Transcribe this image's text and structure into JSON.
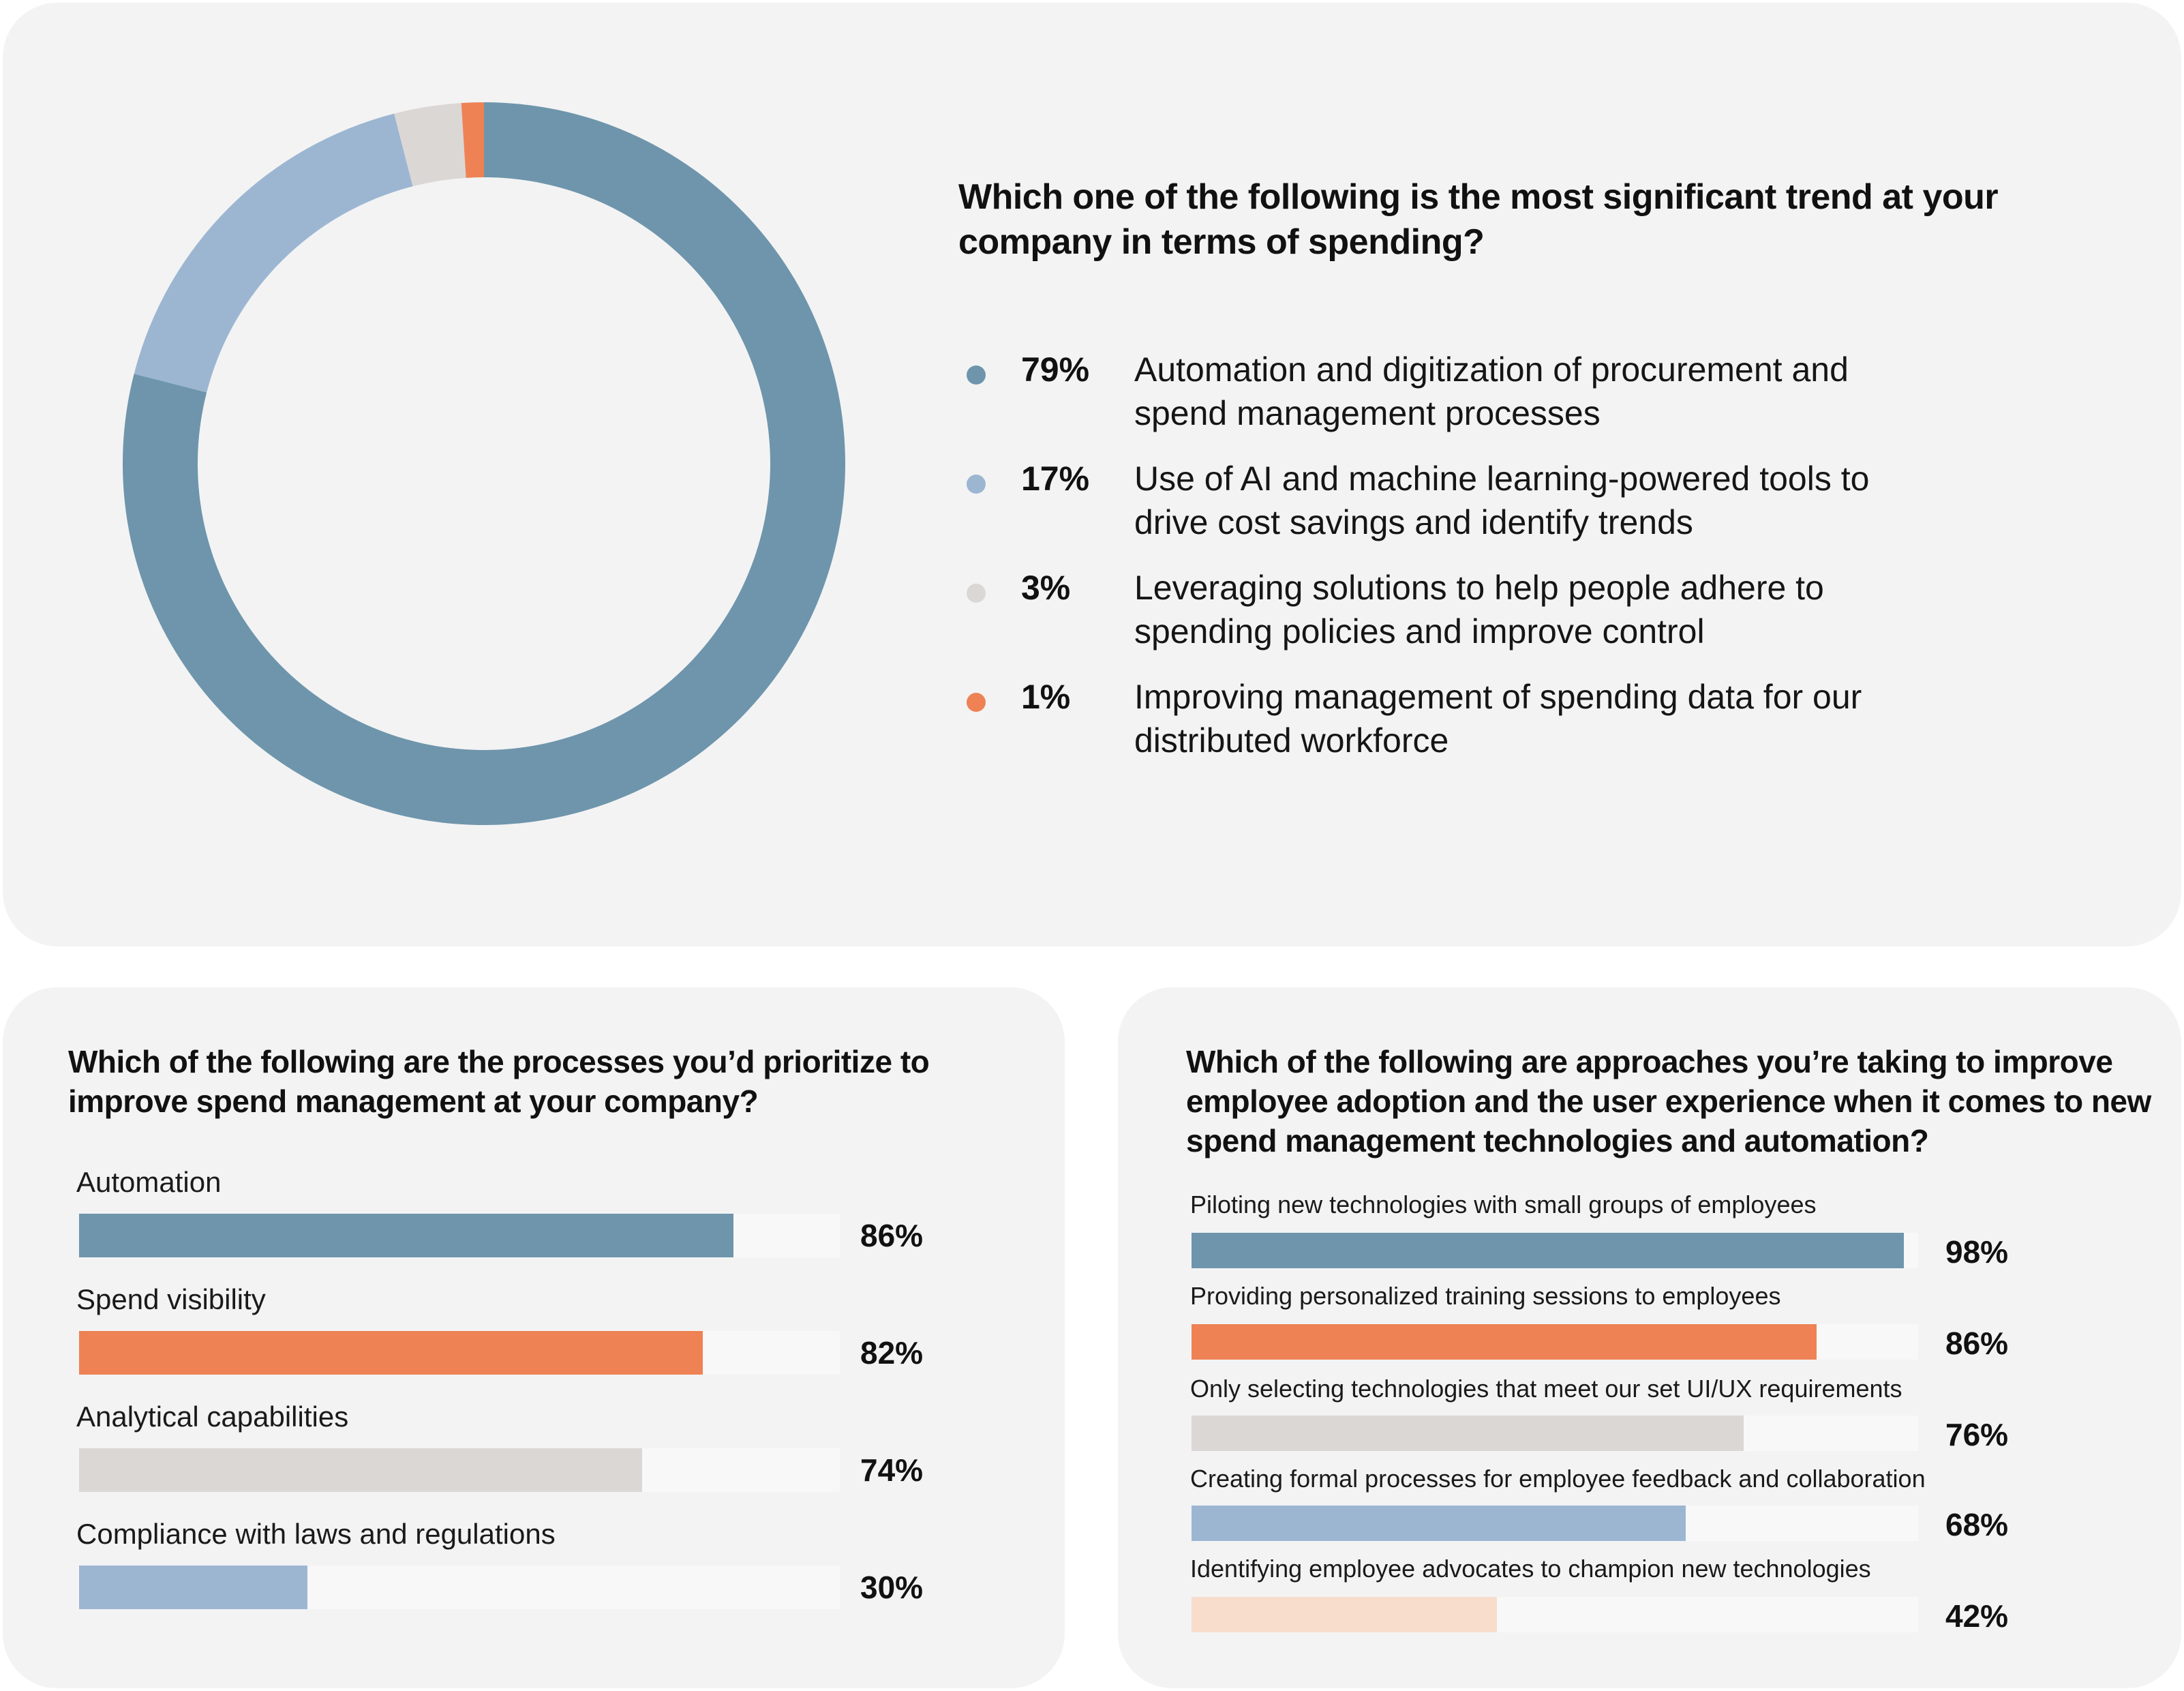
{
  "chart_data": [
    {
      "type": "pie",
      "variant": "donut",
      "title": "Which one of the following is the most significant trend at your company in terms of spending?",
      "slices": [
        {
          "pct": 79,
          "pct_label": "79%",
          "label": "Automation and digitization of procurement and spend management processes",
          "color": "#6e95ab"
        },
        {
          "pct": 17,
          "pct_label": "17%",
          "label": "Use of AI and machine learning-powered tools to drive cost savings and identify trends",
          "color": "#9cb6d2"
        },
        {
          "pct": 3,
          "pct_label": "3%",
          "label": "Leveraging solutions to help people adhere to spending policies and improve control",
          "color": "#dbd7d5"
        },
        {
          "pct": 1,
          "pct_label": "1%",
          "label": "Improving management of spending data for our distributed workforce",
          "color": "#ee8254"
        }
      ]
    },
    {
      "type": "bar",
      "orientation": "horizontal",
      "title": "Which of the following are the processes you’d prioritize to improve spend management at your company?",
      "xlim": [
        0,
        100
      ],
      "bars": [
        {
          "label": "Automation",
          "value": 86,
          "value_label": "86%",
          "color": "#6e95ab"
        },
        {
          "label": "Spend visibility",
          "value": 82,
          "value_label": "82%",
          "color": "#ee8254"
        },
        {
          "label": "Analytical capabilities",
          "value": 74,
          "value_label": "74%",
          "color": "#dbd7d5"
        },
        {
          "label": "Compliance with laws and regulations",
          "value": 30,
          "value_label": "30%",
          "color": "#9cb6d2"
        }
      ]
    },
    {
      "type": "bar",
      "orientation": "horizontal",
      "title": "Which of the following are approaches you’re taking to improve employee adoption and the user experience when it comes to new spend management technologies and automation?",
      "xlim": [
        0,
        100
      ],
      "bars": [
        {
          "label": "Piloting new technologies with small groups of employees",
          "value": 98,
          "value_label": "98%",
          "color": "#6e95ab"
        },
        {
          "label": "Providing personalized training sessions to employees",
          "value": 86,
          "value_label": "86%",
          "color": "#ee8254"
        },
        {
          "label": "Only selecting technologies that meet our set UI/UX requirements",
          "value": 76,
          "value_label": "76%",
          "color": "#dbd7d5"
        },
        {
          "label": "Creating formal processes for employee feedback and collaboration",
          "value": 68,
          "value_label": "68%",
          "color": "#9cb6d2"
        },
        {
          "label": "Identifying employee advocates to champion new technologies",
          "value": 42,
          "value_label": "42%",
          "color": "#f8dccc"
        }
      ]
    }
  ]
}
